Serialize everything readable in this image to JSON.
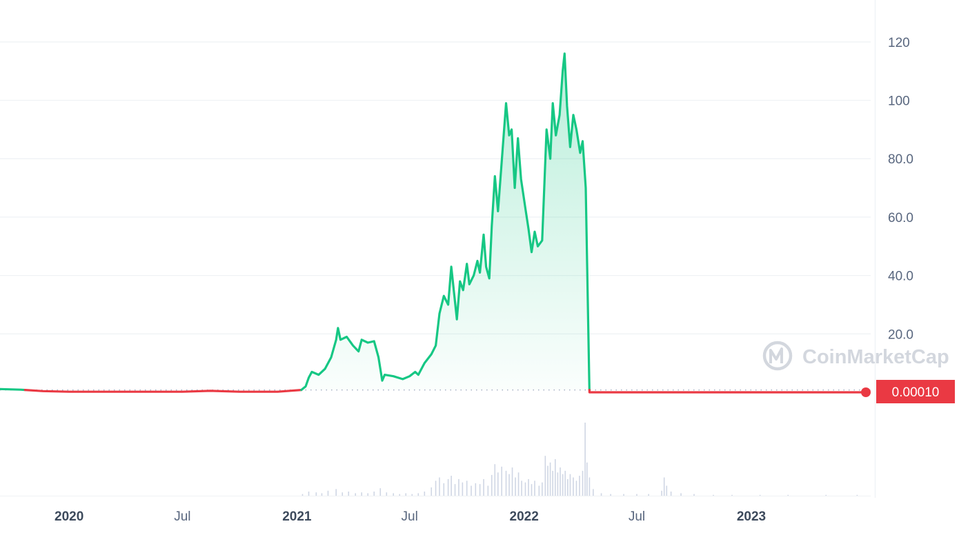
{
  "colors": {
    "up": "#16c784",
    "down": "#ea3943",
    "grid": "#eff2f5",
    "axis_text": "#58667e",
    "volume": "#cfd6e4",
    "watermark": "#d3d7de"
  },
  "watermark": {
    "text": "CoinMarketCap"
  },
  "current_price": {
    "label": "0.00010"
  },
  "chart_data": {
    "type": "line",
    "title": "",
    "xlabel": "",
    "ylabel": "",
    "y_ticks": [
      20,
      40,
      60,
      80,
      100,
      120
    ],
    "y_tick_labels": [
      "20.0",
      "40.0",
      "60.0",
      "80.0",
      "100",
      "120"
    ],
    "x_ticks": [
      {
        "label": "2020",
        "date": "2020-01-01",
        "bold": true
      },
      {
        "label": "Jul",
        "date": "2020-07-01",
        "bold": false
      },
      {
        "label": "2021",
        "date": "2021-01-01",
        "bold": true
      },
      {
        "label": "Jul",
        "date": "2021-07-01",
        "bold": false
      },
      {
        "label": "2022",
        "date": "2022-01-01",
        "bold": true
      },
      {
        "label": "Jul",
        "date": "2022-07-01",
        "bold": false
      },
      {
        "label": "2023",
        "date": "2023-01-01",
        "bold": true
      }
    ],
    "xlim": [
      "2019-09-12",
      "2023-07-04"
    ],
    "ylim": [
      0,
      130
    ],
    "reference_price": 0.8,
    "grid": true,
    "legend": "none",
    "series": [
      {
        "points": [
          [
            "2019-09-12",
            1.1
          ],
          [
            "2019-10-15",
            0.9
          ],
          [
            "2019-11-20",
            0.4
          ],
          [
            "2020-01-01",
            0.2
          ],
          [
            "2020-04-01",
            0.2
          ],
          [
            "2020-07-01",
            0.2
          ],
          [
            "2020-08-15",
            0.5
          ],
          [
            "2020-10-01",
            0.2
          ],
          [
            "2020-12-01",
            0.2
          ],
          [
            "2021-01-08",
            0.8
          ],
          [
            "2021-01-15",
            2.0
          ],
          [
            "2021-01-20",
            5.0
          ],
          [
            "2021-01-25",
            7.0
          ],
          [
            "2021-02-05",
            6.0
          ],
          [
            "2021-02-15",
            8.0
          ],
          [
            "2021-02-25",
            12.0
          ],
          [
            "2021-03-05",
            18.0
          ],
          [
            "2021-03-08",
            22.0
          ],
          [
            "2021-03-12",
            18.0
          ],
          [
            "2021-03-22",
            19.0
          ],
          [
            "2021-04-01",
            16.0
          ],
          [
            "2021-04-10",
            14.0
          ],
          [
            "2021-04-15",
            18.0
          ],
          [
            "2021-04-25",
            17.0
          ],
          [
            "2021-05-05",
            17.5
          ],
          [
            "2021-05-12",
            12.0
          ],
          [
            "2021-05-18",
            4.0
          ],
          [
            "2021-05-22",
            6.0
          ],
          [
            "2021-06-05",
            5.5
          ],
          [
            "2021-06-20",
            4.5
          ],
          [
            "2021-07-01",
            5.5
          ],
          [
            "2021-07-10",
            7.0
          ],
          [
            "2021-07-15",
            6.0
          ],
          [
            "2021-07-25",
            10.0
          ],
          [
            "2021-08-05",
            13.0
          ],
          [
            "2021-08-12",
            16.0
          ],
          [
            "2021-08-18",
            27.0
          ],
          [
            "2021-08-25",
            33.0
          ],
          [
            "2021-09-01",
            30.0
          ],
          [
            "2021-09-06",
            43.0
          ],
          [
            "2021-09-10",
            35.0
          ],
          [
            "2021-09-15",
            25.0
          ],
          [
            "2021-09-20",
            38.0
          ],
          [
            "2021-09-25",
            35.0
          ],
          [
            "2021-10-01",
            44.0
          ],
          [
            "2021-10-05",
            37.0
          ],
          [
            "2021-10-12",
            40.0
          ],
          [
            "2021-10-18",
            45.0
          ],
          [
            "2021-10-22",
            41.0
          ],
          [
            "2021-10-28",
            54.0
          ],
          [
            "2021-11-01",
            43.0
          ],
          [
            "2021-11-06",
            39.0
          ],
          [
            "2021-11-10",
            57.0
          ],
          [
            "2021-11-15",
            74.0
          ],
          [
            "2021-11-20",
            62.0
          ],
          [
            "2021-11-26",
            79.0
          ],
          [
            "2021-12-03",
            99.0
          ],
          [
            "2021-12-08",
            88.0
          ],
          [
            "2021-12-12",
            90.0
          ],
          [
            "2021-12-17",
            70.0
          ],
          [
            "2021-12-22",
            87.0
          ],
          [
            "2021-12-27",
            73.0
          ],
          [
            "2022-01-03",
            63.0
          ],
          [
            "2022-01-08",
            56.0
          ],
          [
            "2022-01-13",
            48.0
          ],
          [
            "2022-01-18",
            55.0
          ],
          [
            "2022-01-23",
            50.0
          ],
          [
            "2022-01-30",
            52.0
          ],
          [
            "2022-02-06",
            90.0
          ],
          [
            "2022-02-12",
            80.0
          ],
          [
            "2022-02-16",
            99.0
          ],
          [
            "2022-02-21",
            88.0
          ],
          [
            "2022-02-27",
            95.0
          ],
          [
            "2022-03-04",
            110.0
          ],
          [
            "2022-03-07",
            116.0
          ],
          [
            "2022-03-11",
            98.0
          ],
          [
            "2022-03-16",
            84.0
          ],
          [
            "2022-03-21",
            95.0
          ],
          [
            "2022-03-26",
            90.0
          ],
          [
            "2022-04-01",
            82.0
          ],
          [
            "2022-04-05",
            86.0
          ],
          [
            "2022-04-10",
            70.0
          ],
          [
            "2022-04-16",
            0.0
          ],
          [
            "2022-05-15",
            0.0
          ],
          [
            "2022-08-01",
            0.0
          ],
          [
            "2022-11-01",
            0.0
          ],
          [
            "2023-02-01",
            0.0
          ],
          [
            "2023-05-01",
            0.0
          ],
          [
            "2023-07-01",
            0.0
          ]
        ]
      }
    ],
    "volume": [
      [
        "2021-01-10",
        2
      ],
      [
        "2021-01-20",
        5
      ],
      [
        "2021-02-01",
        4
      ],
      [
        "2021-02-10",
        3
      ],
      [
        "2021-02-20",
        6
      ],
      [
        "2021-03-05",
        8
      ],
      [
        "2021-03-15",
        4
      ],
      [
        "2021-03-25",
        5
      ],
      [
        "2021-04-05",
        3
      ],
      [
        "2021-04-15",
        4
      ],
      [
        "2021-04-25",
        3
      ],
      [
        "2021-05-05",
        5
      ],
      [
        "2021-05-15",
        9
      ],
      [
        "2021-05-25",
        4
      ],
      [
        "2021-06-05",
        3
      ],
      [
        "2021-06-15",
        2
      ],
      [
        "2021-06-25",
        3
      ],
      [
        "2021-07-05",
        2
      ],
      [
        "2021-07-15",
        3
      ],
      [
        "2021-07-25",
        5
      ],
      [
        "2021-08-05",
        10
      ],
      [
        "2021-08-12",
        18
      ],
      [
        "2021-08-18",
        22
      ],
      [
        "2021-08-25",
        15
      ],
      [
        "2021-09-01",
        20
      ],
      [
        "2021-09-06",
        24
      ],
      [
        "2021-09-12",
        14
      ],
      [
        "2021-09-18",
        20
      ],
      [
        "2021-09-24",
        16
      ],
      [
        "2021-10-01",
        18
      ],
      [
        "2021-10-08",
        12
      ],
      [
        "2021-10-15",
        15
      ],
      [
        "2021-10-22",
        14
      ],
      [
        "2021-10-28",
        20
      ],
      [
        "2021-11-04",
        12
      ],
      [
        "2021-11-10",
        25
      ],
      [
        "2021-11-15",
        38
      ],
      [
        "2021-11-20",
        28
      ],
      [
        "2021-11-26",
        35
      ],
      [
        "2021-12-03",
        30
      ],
      [
        "2021-12-08",
        26
      ],
      [
        "2021-12-13",
        34
      ],
      [
        "2021-12-18",
        22
      ],
      [
        "2021-12-23",
        28
      ],
      [
        "2021-12-28",
        18
      ],
      [
        "2022-01-03",
        16
      ],
      [
        "2022-01-08",
        20
      ],
      [
        "2022-01-13",
        14
      ],
      [
        "2022-01-18",
        18
      ],
      [
        "2022-01-25",
        12
      ],
      [
        "2022-01-30",
        16
      ],
      [
        "2022-02-04",
        48
      ],
      [
        "2022-02-08",
        36
      ],
      [
        "2022-02-12",
        40
      ],
      [
        "2022-02-16",
        30
      ],
      [
        "2022-02-20",
        44
      ],
      [
        "2022-02-24",
        28
      ],
      [
        "2022-02-28",
        34
      ],
      [
        "2022-03-04",
        26
      ],
      [
        "2022-03-08",
        30
      ],
      [
        "2022-03-12",
        20
      ],
      [
        "2022-03-16",
        26
      ],
      [
        "2022-03-21",
        22
      ],
      [
        "2022-03-26",
        18
      ],
      [
        "2022-03-31",
        24
      ],
      [
        "2022-04-05",
        30
      ],
      [
        "2022-04-09",
        88
      ],
      [
        "2022-04-12",
        40
      ],
      [
        "2022-04-16",
        22
      ],
      [
        "2022-04-22",
        8
      ],
      [
        "2022-05-05",
        3
      ],
      [
        "2022-05-20",
        2
      ],
      [
        "2022-06-10",
        2
      ],
      [
        "2022-07-01",
        2
      ],
      [
        "2022-07-20",
        2
      ],
      [
        "2022-08-10",
        6
      ],
      [
        "2022-08-14",
        22
      ],
      [
        "2022-08-18",
        12
      ],
      [
        "2022-08-25",
        5
      ],
      [
        "2022-09-10",
        3
      ],
      [
        "2022-10-01",
        2
      ],
      [
        "2022-11-01",
        1
      ],
      [
        "2022-12-01",
        1
      ],
      [
        "2023-01-15",
        1
      ],
      [
        "2023-03-01",
        1
      ],
      [
        "2023-05-01",
        1
      ],
      [
        "2023-06-20",
        1
      ]
    ]
  }
}
